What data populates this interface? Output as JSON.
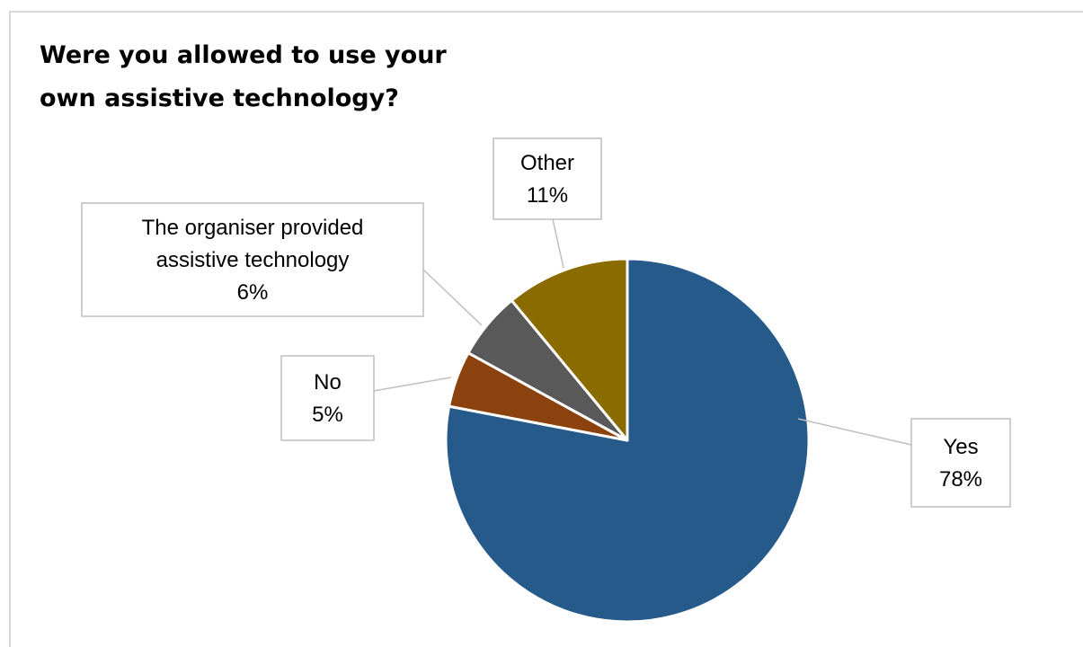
{
  "chart_data": {
    "type": "pie",
    "title": "Were you allowed to use your\nown assistive technology?",
    "slices": [
      {
        "label": "Yes",
        "value": 78,
        "value_label": "78%",
        "color": "#255a8a"
      },
      {
        "label": "No",
        "value": 5,
        "value_label": "5%",
        "color": "#8b420f"
      },
      {
        "label": "The organiser provided\nassistive technology",
        "value": 6,
        "value_label": "6%",
        "color": "#595959"
      },
      {
        "label": "Other",
        "value": 11,
        "value_label": "11%",
        "color": "#8a6b00"
      }
    ],
    "start_at": "12 o'clock",
    "direction": "clockwise",
    "legend": "none",
    "data_labels": "callouts with leader lines"
  }
}
